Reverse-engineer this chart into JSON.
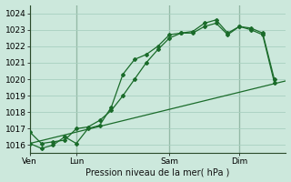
{
  "title": "Pression niveau de la mer( hPa )",
  "bg_color": "#cce8dc",
  "grid_color": "#a8d0c0",
  "line_color": "#1a6b2a",
  "ylim": [
    1015.5,
    1024.5
  ],
  "yticks": [
    1016,
    1017,
    1018,
    1019,
    1020,
    1021,
    1022,
    1023,
    1024
  ],
  "day_labels": [
    "Ven",
    "Lun",
    "Sam",
    "Dim"
  ],
  "day_positions": [
    0,
    4,
    12,
    18
  ],
  "xlim": [
    0,
    22
  ],
  "line1_x": [
    0,
    1,
    2,
    3,
    4,
    5,
    6,
    7,
    8,
    9,
    10,
    11,
    12,
    13,
    14,
    15,
    16,
    17,
    18,
    19,
    20,
    21
  ],
  "line1_y": [
    1016.1,
    1015.8,
    1016.0,
    1016.5,
    1016.1,
    1017.0,
    1017.2,
    1018.3,
    1020.3,
    1021.2,
    1021.5,
    1022.0,
    1022.7,
    1022.8,
    1022.9,
    1023.4,
    1023.6,
    1022.8,
    1023.2,
    1023.0,
    1022.7,
    1019.8
  ],
  "line2_x": [
    0,
    1,
    2,
    3,
    4,
    5,
    6,
    7,
    8,
    9,
    10,
    11,
    12,
    13,
    14,
    15,
    16,
    17,
    18,
    19,
    20,
    21
  ],
  "line2_y": [
    1016.8,
    1016.1,
    1016.2,
    1016.3,
    1017.0,
    1017.1,
    1017.5,
    1018.1,
    1019.0,
    1020.0,
    1021.0,
    1021.8,
    1022.5,
    1022.8,
    1022.8,
    1023.2,
    1023.4,
    1022.7,
    1023.2,
    1023.1,
    1022.8,
    1020.0
  ],
  "line3_x": [
    0,
    22
  ],
  "line3_y": [
    1016.1,
    1019.9
  ]
}
